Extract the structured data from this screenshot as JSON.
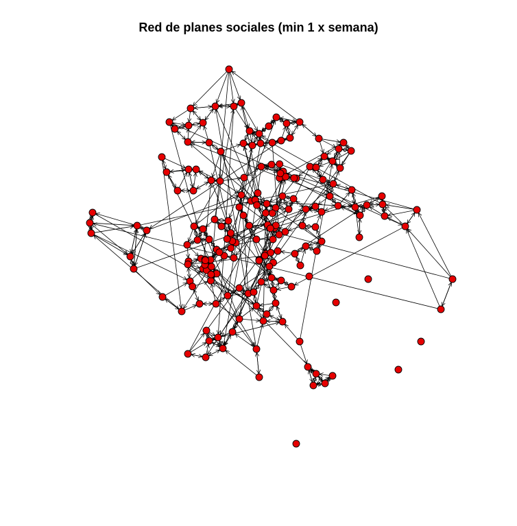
{
  "title": "Red de planes sociales (min 1 x semana)",
  "colors": {
    "node_fill": "#e60000",
    "node_stroke": "#000000",
    "edge": "#000000",
    "background": "#ffffff"
  },
  "node_count": 190,
  "isolated_nodes": 6
}
